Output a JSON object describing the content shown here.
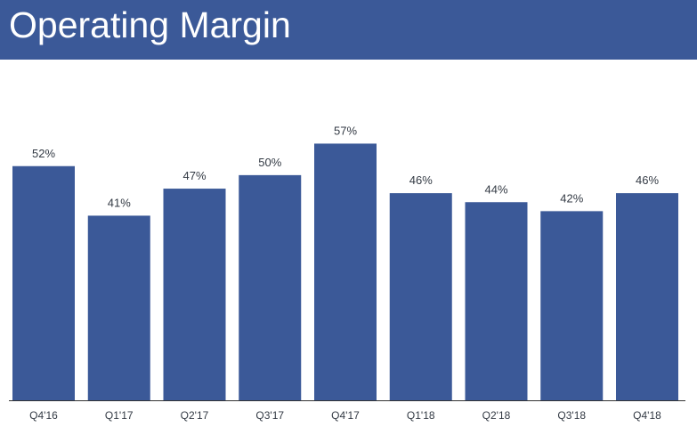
{
  "title": "Operating Margin",
  "colors": {
    "band": "#3b5998",
    "bar": "#3b5998",
    "axis": "#333333",
    "text": "#333a44"
  },
  "chart_data": {
    "type": "bar",
    "title": "Operating Margin",
    "categories": [
      "Q4'16",
      "Q1'17",
      "Q2'17",
      "Q3'17",
      "Q4'17",
      "Q1'18",
      "Q2'18",
      "Q3'18",
      "Q4'18"
    ],
    "values": [
      52,
      41,
      47,
      50,
      57,
      46,
      44,
      42,
      46
    ],
    "labels": [
      "52%",
      "41%",
      "47%",
      "50%",
      "57%",
      "46%",
      "44%",
      "42%",
      "46%"
    ],
    "unit": "%",
    "ylim": [
      0,
      100
    ],
    "grid": false,
    "legend": "none"
  }
}
